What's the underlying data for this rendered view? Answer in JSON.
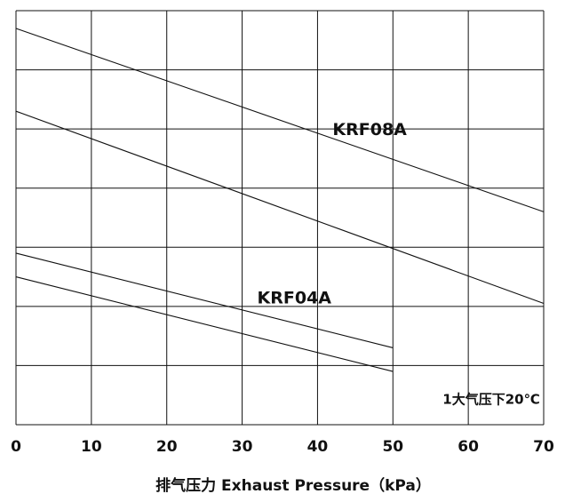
{
  "chart_data": {
    "type": "line",
    "title": "",
    "xlabel": "排气压力  Exhaust Pressure（kPa）",
    "ylabel": "",
    "xlim": [
      0,
      70
    ],
    "ylim": [
      0,
      7
    ],
    "x_ticks": [
      "0",
      "10",
      "20",
      "30",
      "40",
      "50",
      "60",
      "70"
    ],
    "grid": true,
    "series": [
      {
        "name": "KRF08A",
        "x": [
          0,
          70
        ],
        "y": [
          6.7,
          3.6
        ]
      },
      {
        "x": [
          0,
          70
        ],
        "y": [
          5.3,
          2.05
        ]
      },
      {
        "name": "KRF04A",
        "x": [
          0,
          50
        ],
        "y": [
          2.9,
          1.3
        ]
      },
      {
        "x": [
          0,
          50
        ],
        "y": [
          2.5,
          0.9
        ]
      }
    ],
    "annotations": [
      {
        "text": "KRF08A",
        "x": 42,
        "y": 4.9
      },
      {
        "text": "KRF04A",
        "x": 32,
        "y": 2.05
      },
      {
        "text": "1大气压下20℃",
        "x": 69.5,
        "y": 0.35
      }
    ]
  }
}
